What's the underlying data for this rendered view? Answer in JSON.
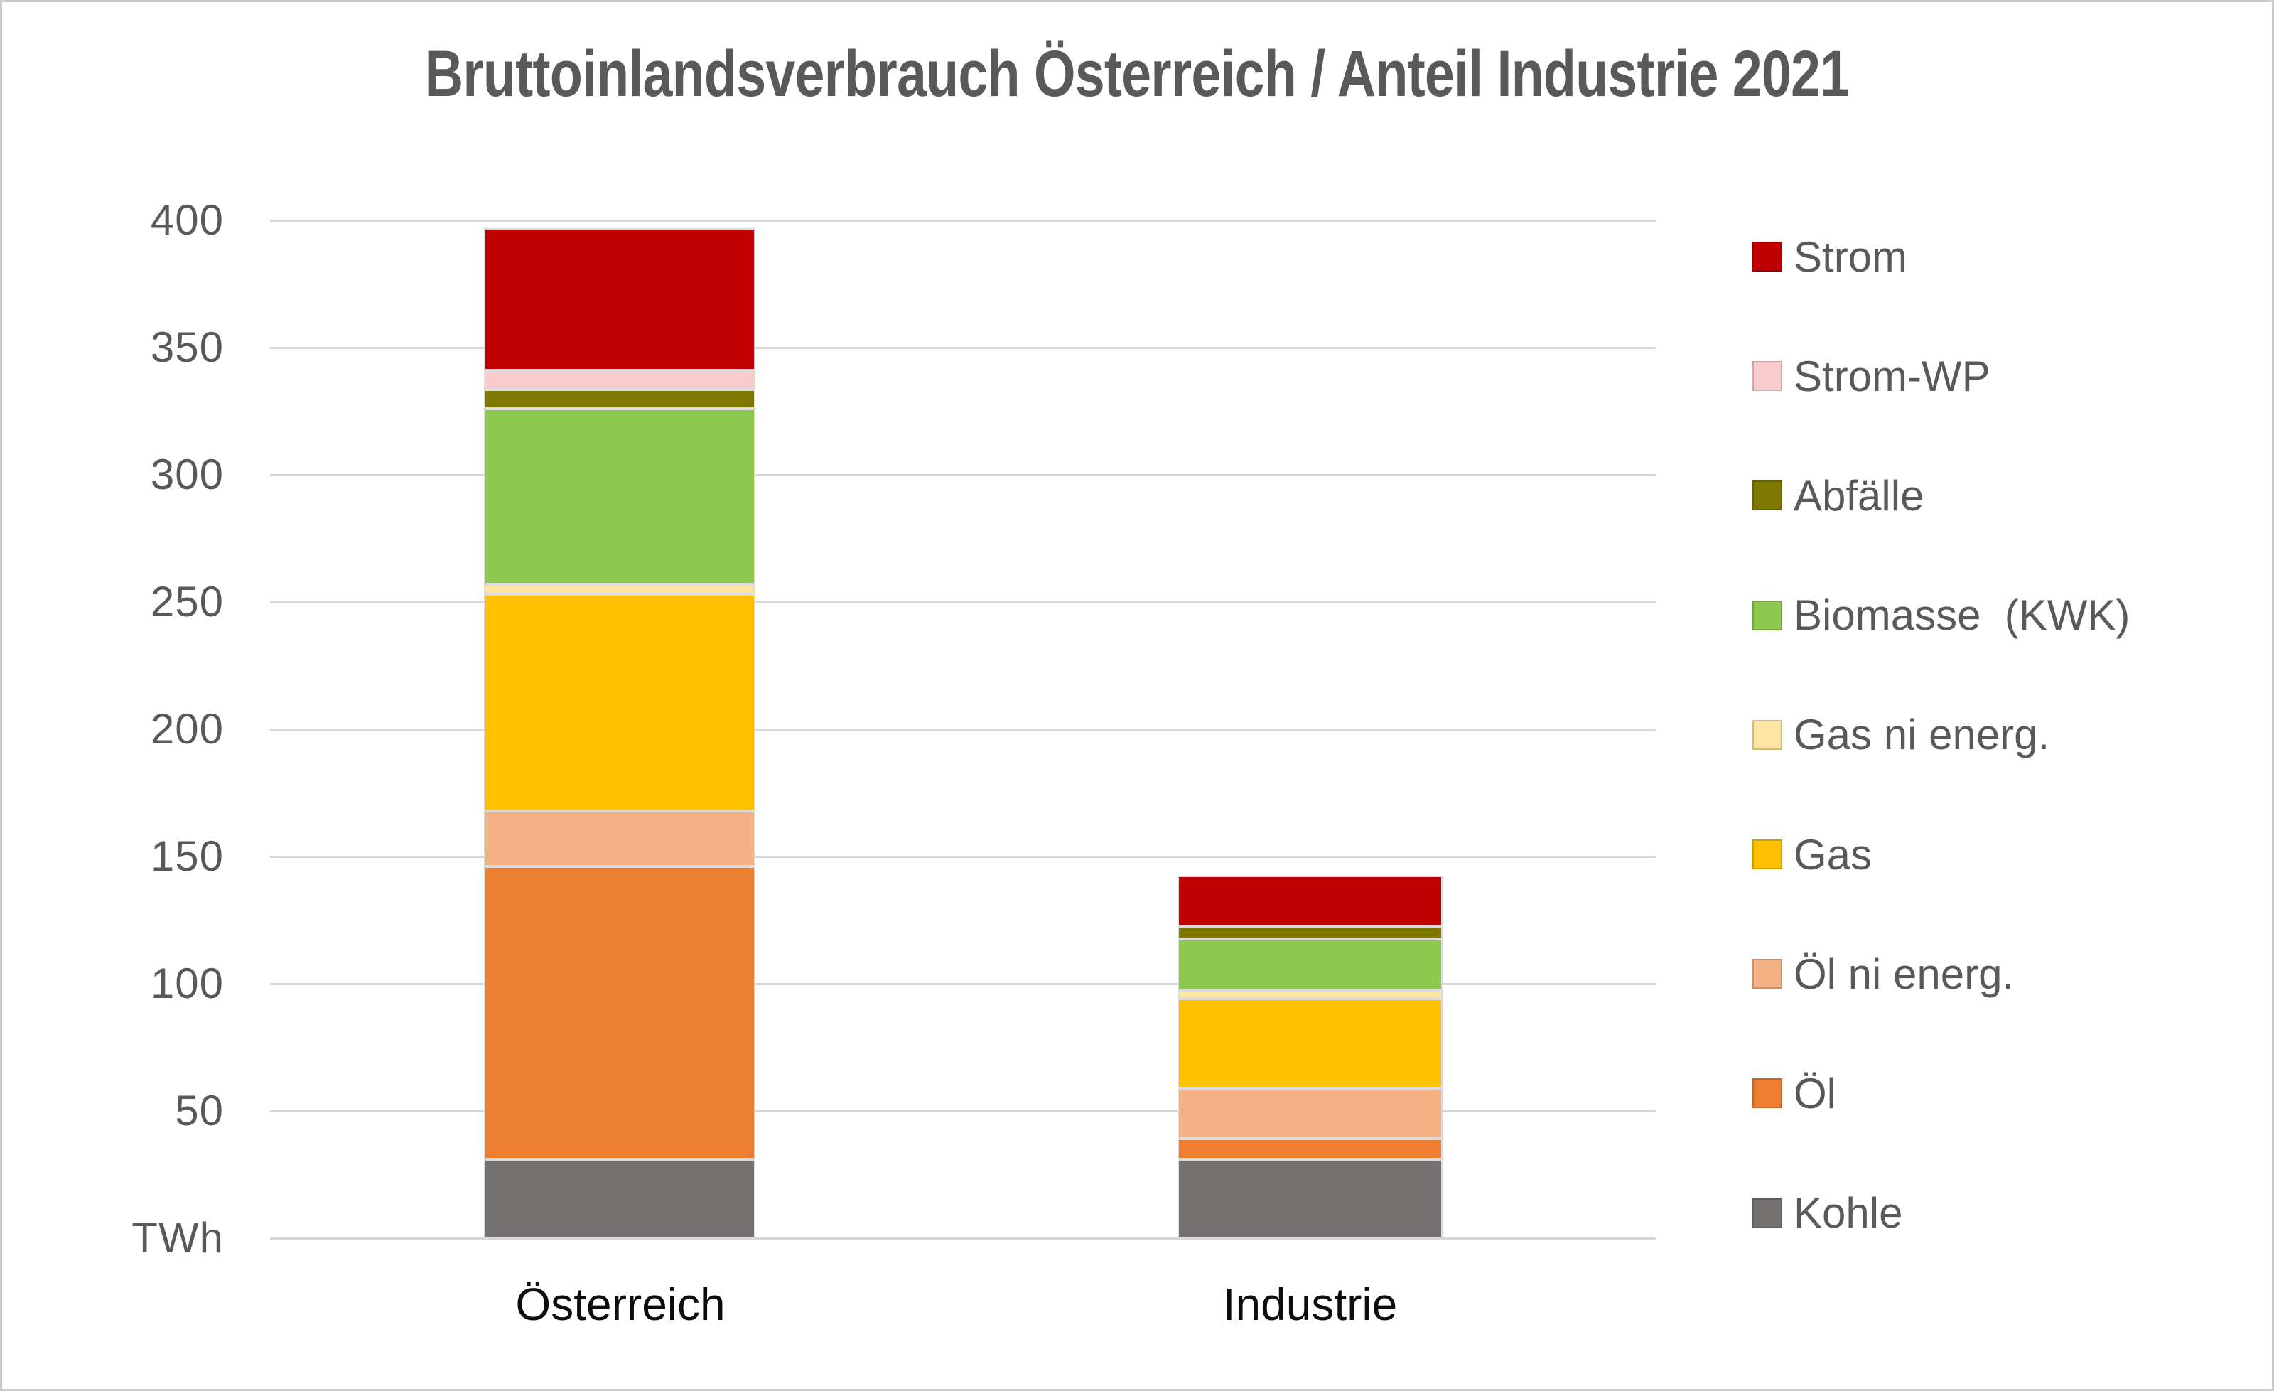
{
  "title": "Bruttoinlandsverbrauch Österreich / Anteil Industrie 2021",
  "y_axis": {
    "unit_label": "TWh",
    "ticks": [
      400,
      350,
      300,
      250,
      200,
      150,
      100,
      50
    ],
    "max": 400
  },
  "chart_data": {
    "type": "bar",
    "stacked": true,
    "title": "Bruttoinlandsverbrauch Österreich / Anteil Industrie 2021",
    "categories": [
      "Österreich",
      "Industrie"
    ],
    "xlabel": "",
    "ylabel": "TWh",
    "ylim": [
      0,
      400
    ],
    "grid": true,
    "legend_position": "right",
    "series": [
      {
        "name": "Strom",
        "color": "#C00000",
        "values": [
          56,
          20
        ]
      },
      {
        "name": "Strom-WP",
        "color": "#F8CCCD",
        "values": [
          7.5,
          0
        ]
      },
      {
        "name": "Abfälle",
        "color": "#7E7800",
        "values": [
          7.5,
          5
        ]
      },
      {
        "name": "Biomasse  (KWK)",
        "color": "#8DC94F",
        "values": [
          69,
          20
        ]
      },
      {
        "name": "Gas ni energ.",
        "color": "#FBE5A0",
        "values": [
          4,
          3.5
        ]
      },
      {
        "name": "Gas",
        "color": "#FFC000",
        "values": [
          85,
          35
        ]
      },
      {
        "name": "Öl ni energ.",
        "color": "#F4B183",
        "values": [
          22,
          20
        ]
      },
      {
        "name": "Öl",
        "color": "#ED7D31",
        "values": [
          115,
          8
        ]
      },
      {
        "name": "Kohle",
        "color": "#767171",
        "values": [
          31,
          31
        ]
      }
    ],
    "totals": [
      397,
      142.5
    ]
  }
}
